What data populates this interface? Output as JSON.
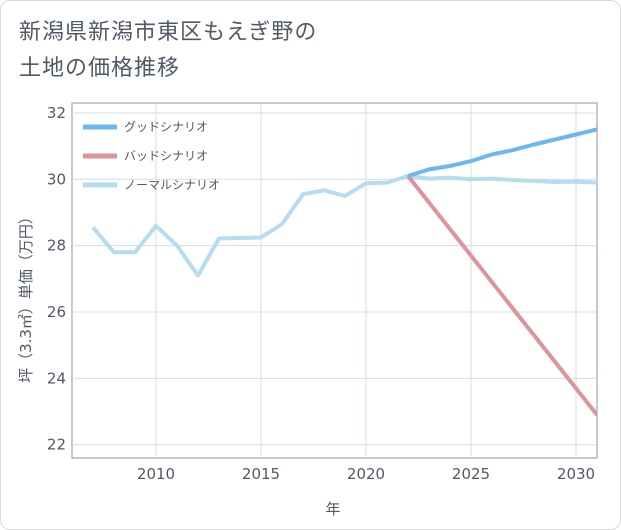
{
  "title_line1": "新潟県新潟市東区もえぎ野の",
  "title_line2": "土地の価格推移",
  "chart_data": {
    "type": "line",
    "xlabel": "年",
    "ylabel": "坪（3.3㎡）単価（万円）",
    "xlim": [
      2006,
      2031
    ],
    "ylim": [
      21.6,
      32.3
    ],
    "xticks": [
      2010,
      2015,
      2020,
      2025,
      2030
    ],
    "yticks": [
      22,
      24,
      26,
      28,
      30,
      32
    ],
    "grid": true,
    "legend_position": "top-left",
    "series": [
      {
        "name": "グッドシナリオ",
        "color": "#6bb8f0",
        "x": [
          2022,
          2023,
          2024,
          2025,
          2026,
          2027,
          2028,
          2029,
          2030,
          2031
        ],
        "values": [
          30.1,
          30.3,
          30.4,
          30.55,
          30.75,
          30.88,
          31.05,
          31.2,
          31.35,
          31.5
        ]
      },
      {
        "name": "バッドシナリオ",
        "color": "#e0939a",
        "x": [
          2022,
          2031
        ],
        "values": [
          30.1,
          22.9
        ]
      },
      {
        "name": "ノーマルシナリオ",
        "color": "#b5dcef",
        "x": [
          2007,
          2008,
          2009,
          2010,
          2011,
          2012,
          2013,
          2014,
          2015,
          2016,
          2017,
          2018,
          2019,
          2020,
          2021,
          2022,
          2023,
          2024,
          2025,
          2026,
          2027,
          2028,
          2029,
          2030,
          2031
        ],
        "values": [
          28.55,
          27.8,
          27.8,
          28.6,
          28.0,
          27.1,
          28.22,
          28.23,
          28.25,
          28.65,
          29.55,
          29.67,
          29.5,
          29.88,
          29.9,
          30.1,
          30.02,
          30.05,
          30.0,
          30.02,
          29.98,
          29.95,
          29.92,
          29.93,
          29.9
        ]
      }
    ]
  }
}
